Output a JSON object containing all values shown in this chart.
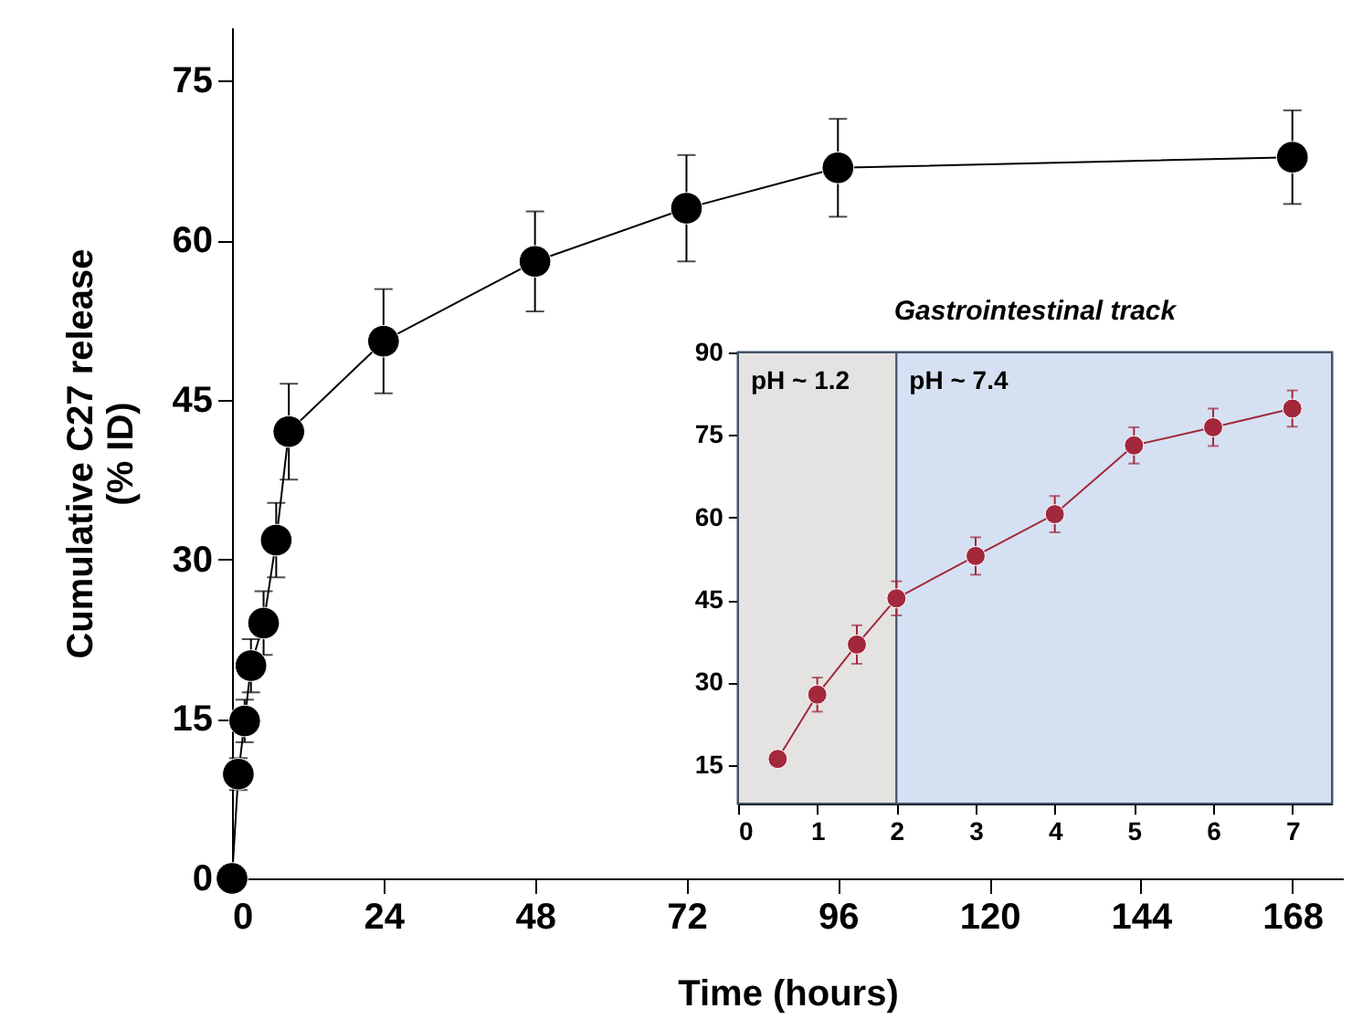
{
  "chart_data": [
    {
      "type": "line",
      "xlabel": "Time (hours)",
      "ylabel": "Cumulative C27 release\n(% ID)",
      "x": [
        0,
        1,
        2,
        3,
        5,
        7,
        9,
        24,
        48,
        72,
        96,
        168
      ],
      "series": [
        {
          "color": "#000000",
          "values": [
            0,
            9.8,
            14.8,
            20,
            24,
            31.8,
            42,
            50.5,
            58,
            63,
            66.8,
            67.8
          ],
          "errors": [
            null,
            1.5,
            2,
            2.5,
            3,
            3.5,
            4.5,
            4.9,
            4.7,
            5,
            4.6,
            4.4
          ]
        }
      ],
      "xlim": [
        0,
        176
      ],
      "xticks": [
        0,
        24,
        48,
        72,
        96,
        120,
        144,
        168
      ],
      "ylim": [
        0,
        80
      ],
      "yticks": [
        0,
        15,
        30,
        45,
        60,
        75
      ],
      "marker": "circle"
    },
    {
      "type": "line",
      "title": "Gastrointestinal track",
      "x": [
        0.5,
        1,
        1.5,
        2,
        3,
        4,
        5,
        6,
        7
      ],
      "series": [
        {
          "color": "#a3283c",
          "values": [
            16.1,
            27.8,
            36.9,
            45.3,
            53,
            60.6,
            73.1,
            76.4,
            79.8
          ],
          "errors": [
            1,
            3.1,
            3.5,
            3.1,
            3.4,
            3.3,
            3.3,
            3.4,
            3.3
          ]
        }
      ],
      "xlim": [
        0,
        7.5
      ],
      "xticks": [
        0,
        1,
        2,
        3,
        4,
        5,
        6,
        7
      ],
      "ylim": [
        8,
        90
      ],
      "yticks": [
        15,
        30,
        45,
        60,
        75,
        90
      ],
      "marker": "circle",
      "bands": [
        {
          "axis": "x",
          "from": 0,
          "to": 2,
          "label": "pH ~ 1.2",
          "color": "#e4e3e1"
        },
        {
          "axis": "x",
          "from": 2,
          "to": 7.5,
          "label": "pH ~ 7.4",
          "color": "#d5e1f2"
        }
      ]
    }
  ]
}
